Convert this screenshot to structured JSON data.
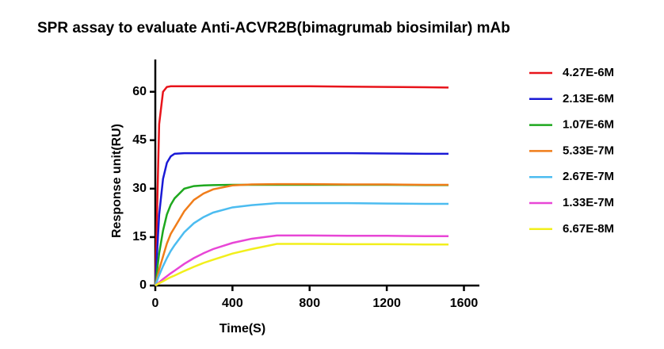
{
  "chart_data": {
    "type": "line",
    "title": "SPR assay to evaluate Anti-ACVR2B(bimagrumab biosimilar) mAb",
    "x_label": "Time(S)",
    "y_label": "Response unit(RU)",
    "x": [
      0,
      20,
      40,
      60,
      80,
      100,
      150,
      200,
      250,
      300,
      400,
      500,
      630,
      800,
      1000,
      1200,
      1400,
      1520
    ],
    "series": [
      {
        "name": "4.27E-6M",
        "color": "#e8141b",
        "values": [
          0,
          50,
          60,
          61.5,
          61.7,
          61.7,
          61.7,
          61.7,
          61.7,
          61.7,
          61.7,
          61.7,
          61.7,
          61.7,
          61.6,
          61.5,
          61.4,
          61.3
        ]
      },
      {
        "name": "2.13E-6M",
        "color": "#1a1ad6",
        "values": [
          0,
          22,
          33,
          38,
          40,
          40.8,
          41,
          41,
          41,
          41,
          41,
          41,
          41,
          41,
          41,
          40.9,
          40.8,
          40.8
        ]
      },
      {
        "name": "1.07E-6M",
        "color": "#1ea81e",
        "values": [
          0,
          10,
          17,
          22,
          25,
          27,
          30,
          30.8,
          31,
          31.1,
          31.2,
          31.2,
          31.2,
          31.2,
          31.2,
          31.2,
          31.1,
          31.1
        ]
      },
      {
        "name": "5.33E-7M",
        "color": "#f07d1a",
        "values": [
          0,
          5,
          9,
          13,
          16,
          18,
          23,
          26.5,
          28.5,
          29.8,
          31,
          31.3,
          31.4,
          31.4,
          31.3,
          31.3,
          31.2,
          31.2
        ]
      },
      {
        "name": "2.67E-7M",
        "color": "#4cbcf0",
        "values": [
          0,
          3.2,
          6,
          8.5,
          10.7,
          12.5,
          16.5,
          19.3,
          21.2,
          22.6,
          24.2,
          24.9,
          25.5,
          25.5,
          25.5,
          25.4,
          25.3,
          25.3
        ]
      },
      {
        "name": "1.33E-7M",
        "color": "#e846d6",
        "values": [
          0,
          1,
          2,
          2.9,
          3.8,
          4.6,
          6.7,
          8.5,
          10,
          11.3,
          13.2,
          14.5,
          15.5,
          15.5,
          15.4,
          15.4,
          15.3,
          15.3
        ]
      },
      {
        "name": "6.67E-8M",
        "color": "#f2ef1c",
        "values": [
          0,
          0.7,
          1.3,
          2,
          2.6,
          3.1,
          4.5,
          5.8,
          7,
          8,
          9.9,
          11.3,
          12.9,
          12.9,
          12.8,
          12.8,
          12.7,
          12.7
        ]
      }
    ],
    "xlim": [
      0,
      1680
    ],
    "ylim": [
      0,
      70
    ],
    "xticks": [
      0,
      400,
      800,
      1200,
      1600
    ],
    "yticks": [
      0,
      15,
      30,
      45,
      60
    ],
    "grid": false,
    "legend": "right"
  }
}
